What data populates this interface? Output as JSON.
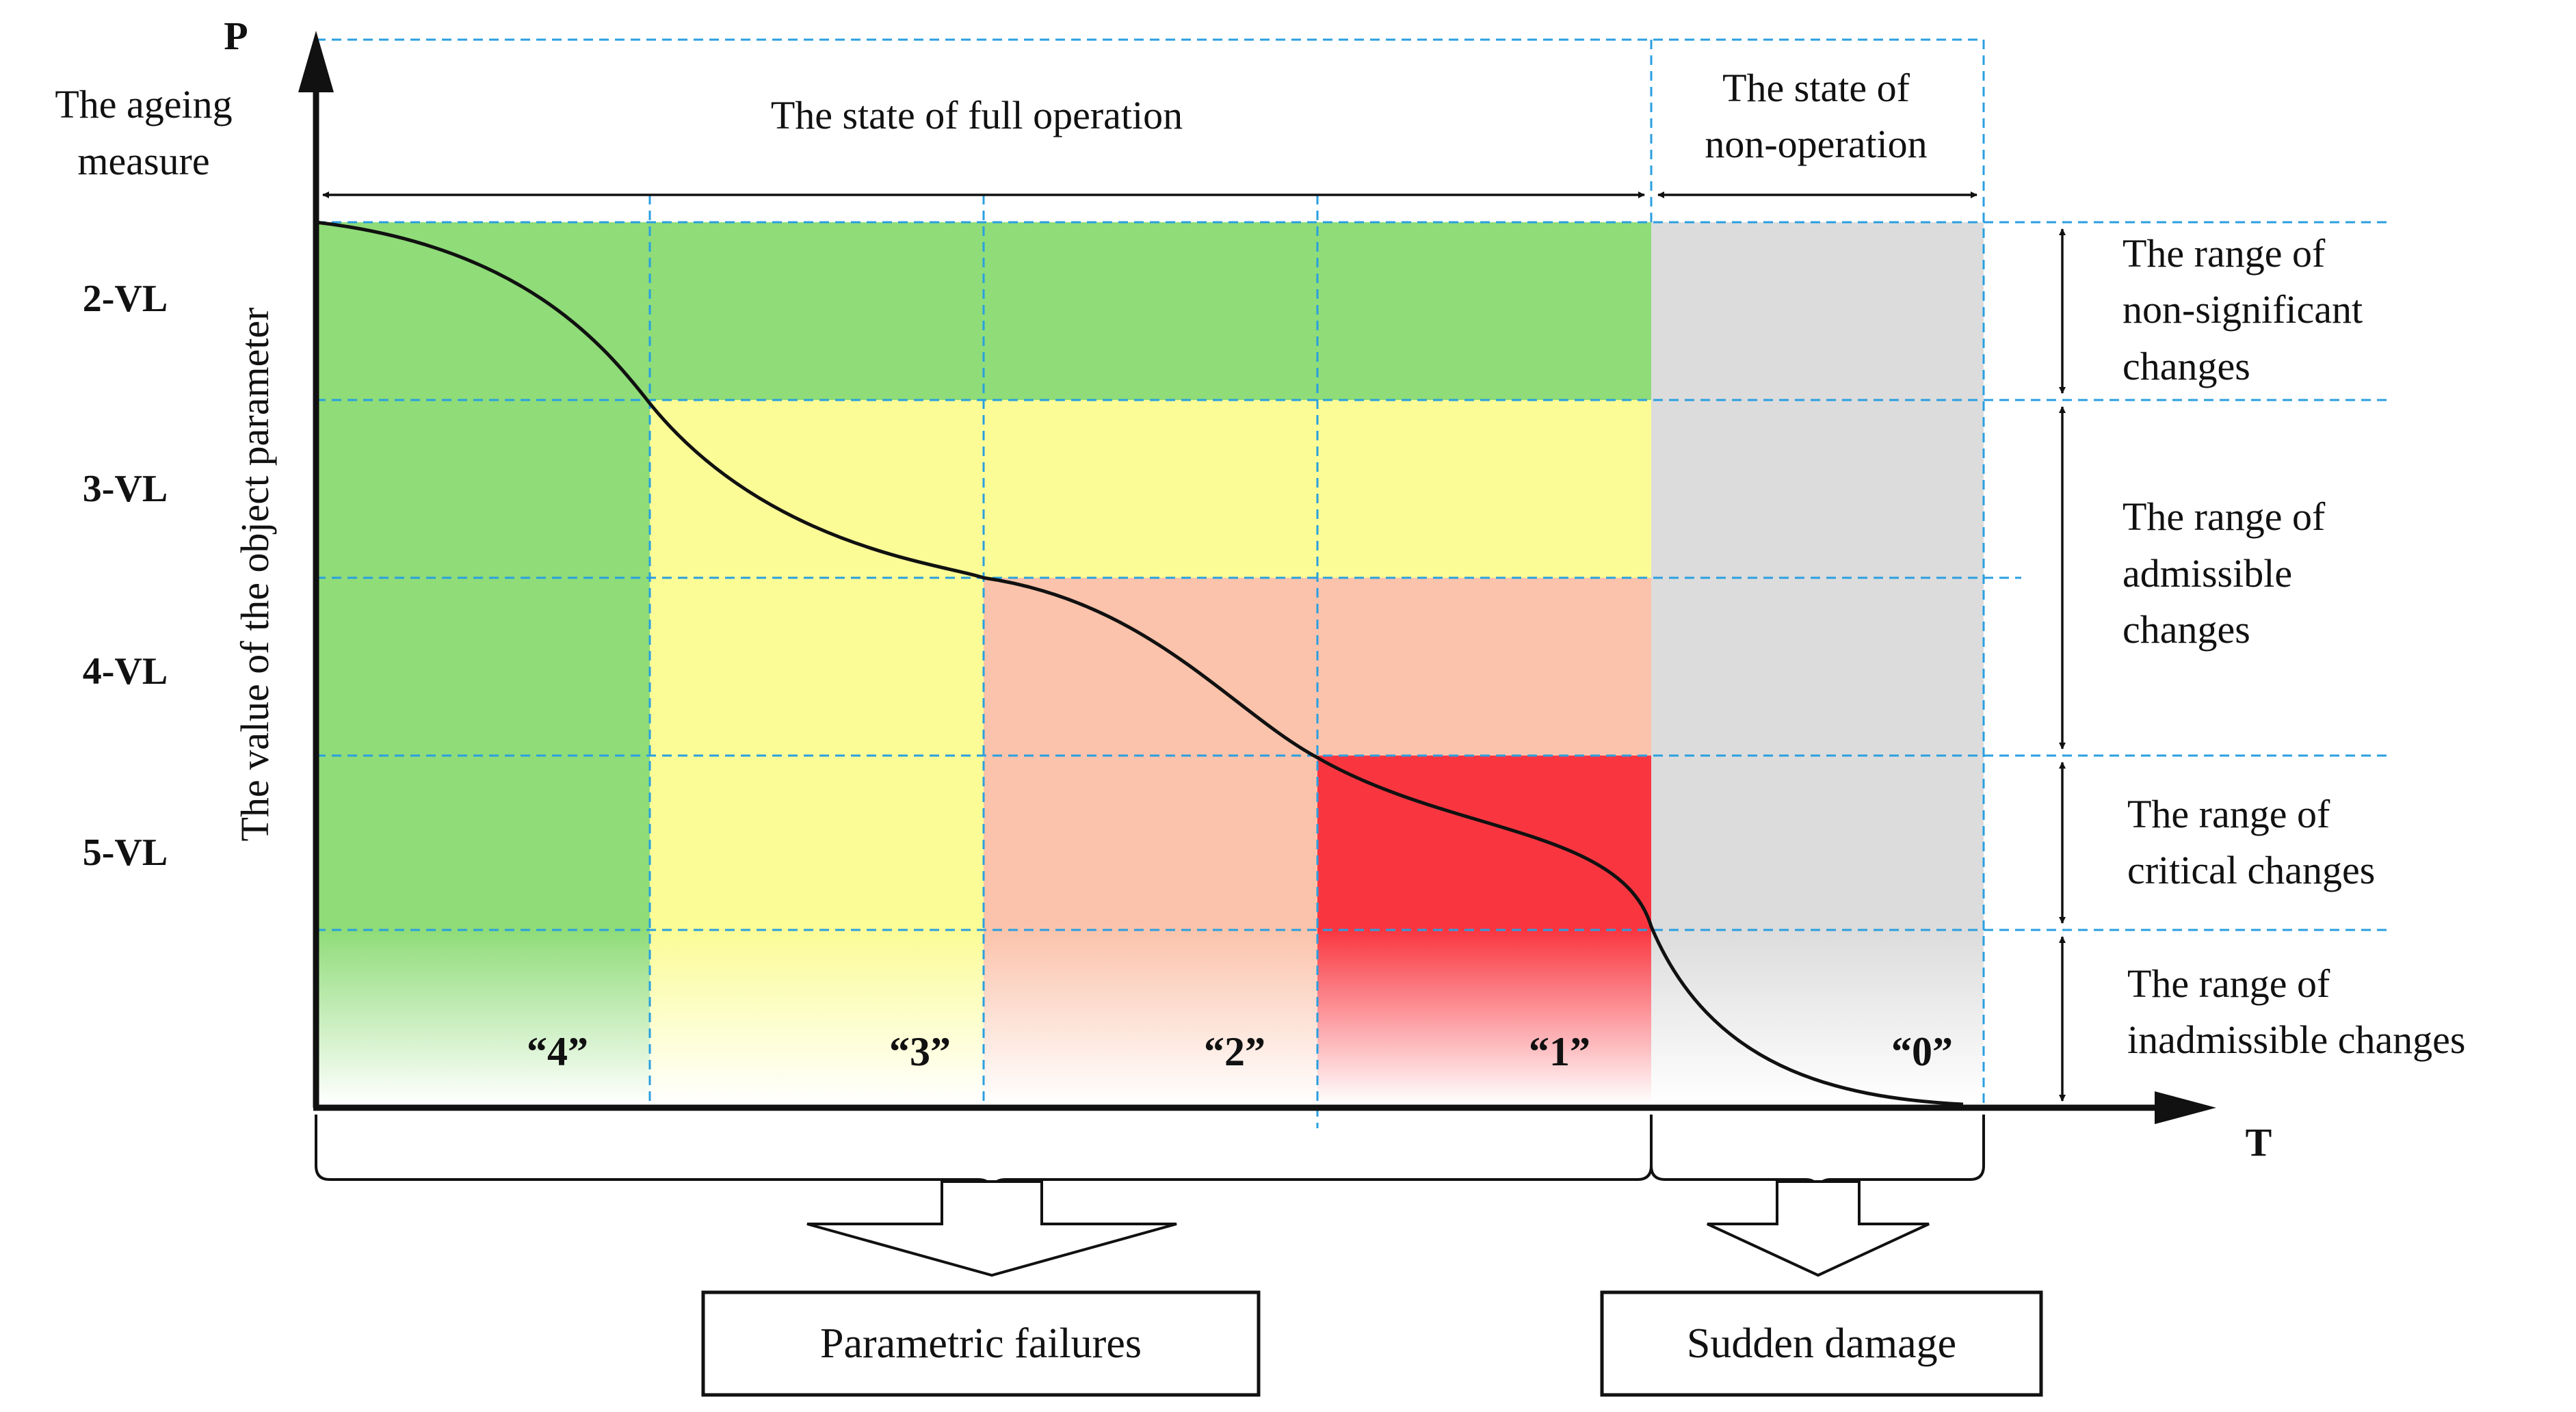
{
  "colors": {
    "green": "#8fdc78",
    "yellow": "#fbfc96",
    "salmon": "#fbc3ab",
    "red": "#f93640",
    "gray": "#dcdcdc",
    "grid": "#2a9fe0",
    "ink": "#111111"
  },
  "axes": {
    "y_symbol": "P",
    "y_title_line1": "The ageing",
    "y_title_line2": "measure",
    "y_label": "The value of the object parameter",
    "x_symbol": "T"
  },
  "levels": [
    "2-VL",
    "3-VL",
    "4-VL",
    "5-VL"
  ],
  "states": {
    "full_operation": "The state of full operation",
    "non_operation_line1": "The state of",
    "non_operation_line2": "non-operation"
  },
  "ranges": {
    "non_significant": [
      "The range of",
      "non-significant",
      "changes"
    ],
    "admissible": [
      "The range of",
      "admissible",
      "changes"
    ],
    "critical": [
      "The range of",
      "critical changes"
    ],
    "inadmissible": [
      "The range of",
      "inadmissible changes"
    ]
  },
  "columns": [
    "“4”",
    "“3”",
    "“2”",
    "“1”",
    "“0”"
  ],
  "outcomes": {
    "parametric": "Parametric failures",
    "sudden": "Sudden damage"
  }
}
